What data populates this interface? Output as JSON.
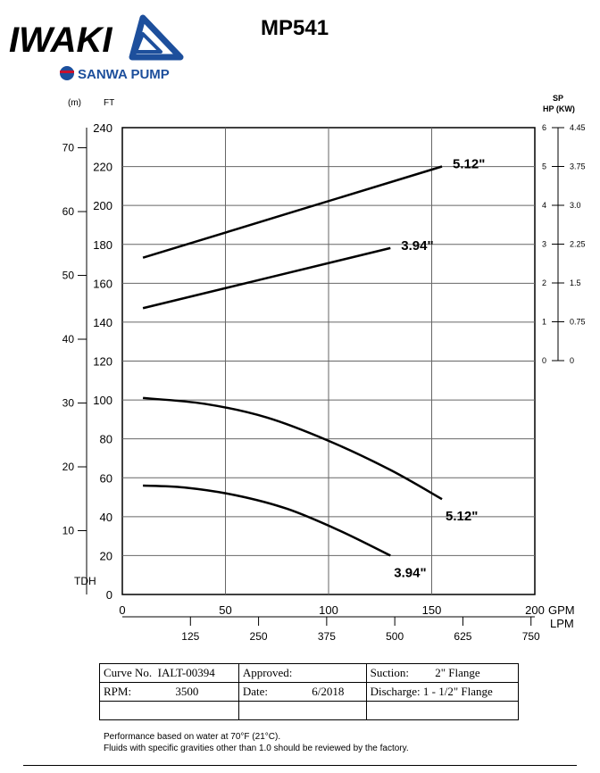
{
  "brand": {
    "name": "IWAKI",
    "subname": "SANWA PUMP",
    "color": "#1d4f9c",
    "accent": "#c8102e"
  },
  "chart_data": {
    "type": "line",
    "title": "MP541",
    "left_axis": {
      "unit_ft": "FT",
      "unit_m": "(m)",
      "name": "TDH",
      "range_ft": [
        0,
        240
      ],
      "ticks_ft": [
        "0",
        "20",
        "40",
        "60",
        "80",
        "100",
        "120",
        "140",
        "160",
        "180",
        "200",
        "220",
        "240"
      ],
      "ticks_m": [
        "10",
        "20",
        "30",
        "40",
        "50",
        "60",
        "70"
      ]
    },
    "right_axis": {
      "label_line1": "SP",
      "label_line2": "HP  (KW)",
      "range_hp": [
        0,
        6
      ],
      "ticks_hp": [
        "0",
        "1",
        "2",
        "3",
        "4",
        "5",
        "6"
      ],
      "ticks_kw": [
        "0",
        "0.75",
        "1.5",
        "2.25",
        "3.0",
        "3.75",
        "4.45"
      ]
    },
    "x_axis": {
      "unit_gpm": "GPM",
      "unit_lpm": "LPM",
      "range_gpm": [
        0,
        200
      ],
      "ticks_gpm": [
        "0",
        "50",
        "100",
        "150",
        "200"
      ],
      "ticks_lpm": [
        "125",
        "250",
        "375",
        "500",
        "625",
        "750"
      ]
    },
    "series": [
      {
        "name": "5.12\"",
        "kind": "head",
        "x": [
          10,
          40,
          70,
          100,
          130,
          155
        ],
        "y": [
          101,
          98,
          91,
          79,
          64,
          49
        ]
      },
      {
        "name": "3.94\"",
        "kind": "head",
        "x": [
          10,
          30,
          55,
          80,
          105,
          130
        ],
        "y": [
          56,
          55,
          51,
          44,
          33,
          20
        ]
      },
      {
        "name": "5.12\"",
        "kind": "power",
        "x": [
          10,
          155
        ],
        "y": [
          2.65,
          5.0
        ]
      },
      {
        "name": "3.94\"",
        "kind": "power",
        "x": [
          10,
          130
        ],
        "y": [
          1.35,
          2.9
        ]
      }
    ]
  },
  "info_table": {
    "curve_no_label": "Curve No.",
    "curve_no": "IALT-00394",
    "approved_label": "Approved:",
    "suction_label": "Suction:",
    "suction": "2\" Flange",
    "rpm_label": "RPM:",
    "rpm": "3500",
    "date_label": "Date:",
    "date": "6/2018",
    "discharge_label": "Discharge:",
    "discharge": "1 - 1/2\" Flange"
  },
  "notes": {
    "line1": "Performance based on water at 70°F (21°C).",
    "line2": "Fluids with specific gravities other than 1.0 should be reviewed by the factory."
  }
}
